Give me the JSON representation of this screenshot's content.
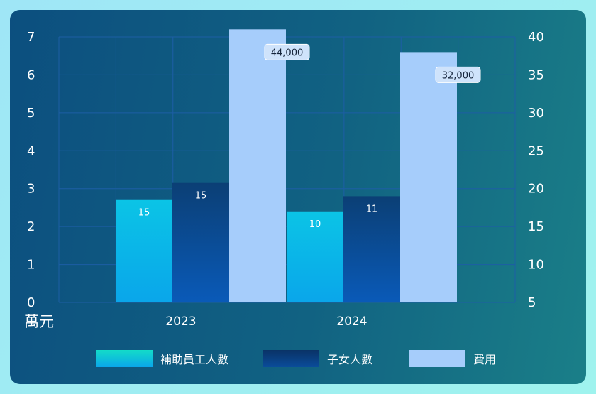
{
  "chart_data": {
    "type": "bar",
    "categories": [
      "2023",
      "2024"
    ],
    "y_left": {
      "unit_label": "萬元",
      "ticks": [
        0,
        1,
        2,
        3,
        4,
        5,
        6,
        7
      ],
      "range": [
        0,
        7
      ]
    },
    "y_right": {
      "ticks": [
        5,
        10,
        15,
        20,
        25,
        30,
        35,
        40
      ],
      "range": [
        5,
        40
      ]
    },
    "series": [
      {
        "name": "補助員工人數",
        "axis": "left",
        "values": [
          2.7,
          2.4
        ],
        "labels": [
          "15",
          "10"
        ],
        "color": "#0bc4e6",
        "color_bottom": "#0aa6ea"
      },
      {
        "name": "子女人數",
        "axis": "left",
        "values": [
          3.15,
          2.8
        ],
        "labels": [
          "15",
          "11"
        ],
        "color": "#0b3f75",
        "color_bottom": "#0a5ab8"
      },
      {
        "name": "費用",
        "axis": "right",
        "values": [
          41,
          38
        ],
        "labels": [
          "44,000",
          "32,000"
        ],
        "color": "#a6cdfb"
      }
    ],
    "grid": true,
    "legend": "bottom"
  }
}
